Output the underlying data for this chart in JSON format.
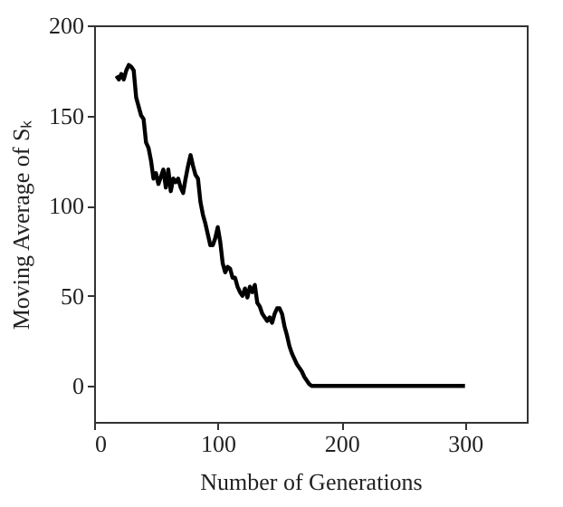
{
  "chart_data": {
    "type": "line",
    "xlabel": "Number of Generations",
    "ylabel": "Moving Average of Sₖ",
    "x": [
      18,
      20,
      22,
      24,
      26,
      28,
      30,
      32,
      34,
      36,
      38,
      40,
      42,
      44,
      46,
      48,
      50,
      52,
      54,
      56,
      58,
      60,
      62,
      64,
      66,
      68,
      70,
      72,
      74,
      76,
      78,
      80,
      82,
      84,
      86,
      88,
      90,
      92,
      94,
      96,
      98,
      100,
      102,
      104,
      106,
      108,
      110,
      112,
      114,
      116,
      118,
      120,
      122,
      124,
      126,
      128,
      130,
      132,
      134,
      136,
      138,
      140,
      142,
      144,
      146,
      148,
      150,
      152,
      154,
      156,
      158,
      160,
      162,
      164,
      166,
      168,
      170,
      172,
      174,
      176,
      300
    ],
    "series": [
      {
        "color": "#000000",
        "values": [
          172,
          170,
          173,
          170,
          175,
          178,
          177,
          175,
          160,
          155,
          150,
          148,
          135,
          132,
          125,
          115,
          118,
          112,
          116,
          120,
          110,
          120,
          108,
          115,
          113,
          115,
          110,
          107,
          115,
          122,
          128,
          122,
          117,
          115,
          102,
          95,
          90,
          84,
          78,
          78,
          82,
          88,
          80,
          68,
          63,
          66,
          65,
          60,
          60,
          55,
          52,
          50,
          54,
          49,
          55,
          52,
          56,
          46,
          44,
          40,
          38,
          36,
          38,
          35,
          40,
          43,
          43,
          40,
          33,
          28,
          22,
          18,
          15,
          12,
          10,
          8,
          5,
          3,
          1,
          0,
          0
        ]
      }
    ],
    "xlim": [
      0,
      350
    ],
    "ylim": [
      -20,
      200
    ],
    "xticks": [
      0,
      100,
      200,
      300
    ],
    "yticks": [
      0,
      50,
      100,
      150,
      200
    ],
    "grid": false,
    "marker": "none",
    "line_style": "solid"
  }
}
